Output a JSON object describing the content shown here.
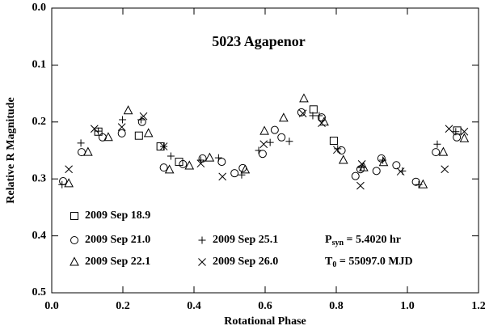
{
  "chart_data": {
    "type": "scatter",
    "title": "5023 Agapenor",
    "x_label": "Rotational Phase",
    "y_label": "Relative R Magnitude",
    "xlim": [
      0,
      1.2
    ],
    "ylim": [
      0,
      0.5
    ],
    "y_inverted": true,
    "xticks": [
      {
        "value": 0,
        "label": "0.0"
      },
      {
        "value": 0.2,
        "label": "0.2"
      },
      {
        "value": 0.4,
        "label": "0.4"
      },
      {
        "value": 0.6,
        "label": "0.6"
      },
      {
        "value": 0.8,
        "label": "0.8"
      },
      {
        "value": 1.0,
        "label": "1.0"
      },
      {
        "value": 1.2,
        "label": "1.2"
      }
    ],
    "yticks": [
      {
        "value": 0,
        "label": "0.0"
      },
      {
        "value": 0.1,
        "label": "0.1"
      },
      {
        "value": 0.2,
        "label": "0.2"
      },
      {
        "value": 0.3,
        "label": "0.3"
      },
      {
        "value": 0.4,
        "label": "0.4"
      },
      {
        "value": 0.5,
        "label": "0.5"
      }
    ],
    "series": [
      {
        "name": "2009 Sep 18.9",
        "color": "#000000",
        "marker": "square",
        "x": [
          0.131,
          0.245,
          0.306,
          0.358,
          0.736,
          0.793,
          1.14
        ],
        "values": [
          0.217,
          0.224,
          0.243,
          0.27,
          0.178,
          0.233,
          0.215
        ]
      },
      {
        "name": "2009 Sep 21.0",
        "color": "#000000",
        "marker": "circle",
        "x": [
          0.032,
          0.084,
          0.143,
          0.197,
          0.254,
          0.315,
          0.369,
          0.424,
          0.478,
          0.514,
          0.537,
          0.593,
          0.627,
          0.646,
          0.702,
          0.759,
          0.815,
          0.854,
          0.868,
          0.913,
          0.927,
          0.969,
          1.024,
          1.08,
          1.139
        ],
        "values": [
          0.304,
          0.253,
          0.227,
          0.22,
          0.2,
          0.28,
          0.274,
          0.264,
          0.27,
          0.29,
          0.281,
          0.256,
          0.214,
          0.227,
          0.183,
          0.192,
          0.25,
          0.295,
          0.283,
          0.286,
          0.264,
          0.276,
          0.305,
          0.253,
          0.227
        ]
      },
      {
        "name": "2009 Sep 22.1",
        "color": "#000000",
        "marker": "triangle",
        "x": [
          0.048,
          0.102,
          0.159,
          0.215,
          0.272,
          0.331,
          0.387,
          0.444,
          0.544,
          0.598,
          0.652,
          0.709,
          0.766,
          0.82,
          0.877,
          0.933,
          1.044,
          1.101,
          1.16
        ],
        "values": [
          0.308,
          0.253,
          0.227,
          0.18,
          0.22,
          0.284,
          0.277,
          0.263,
          0.284,
          0.216,
          0.193,
          0.159,
          0.2,
          0.267,
          0.28,
          0.271,
          0.31,
          0.253,
          0.229
        ]
      },
      {
        "name": "2009 Sep 25.1",
        "color": "#000000",
        "marker": "plus",
        "x": [
          0.029,
          0.082,
          0.131,
          0.199,
          0.251,
          0.315,
          0.335,
          0.419,
          0.469,
          0.534,
          0.582,
          0.614,
          0.668,
          0.734,
          0.752,
          0.804,
          0.87,
          0.931,
          0.986,
          1.032,
          1.084,
          1.136
        ],
        "values": [
          0.31,
          0.237,
          0.216,
          0.196,
          0.196,
          0.243,
          0.26,
          0.267,
          0.263,
          0.293,
          0.25,
          0.236,
          0.234,
          0.189,
          0.189,
          0.247,
          0.28,
          0.267,
          0.286,
          0.31,
          0.239,
          0.217
        ]
      },
      {
        "name": "2009 Sep 26.0",
        "color": "#000000",
        "marker": "x",
        "x": [
          0.048,
          0.12,
          0.197,
          0.258,
          0.315,
          0.419,
          0.48,
          0.596,
          0.706,
          0.759,
          0.802,
          0.868,
          0.872,
          0.981,
          1.105,
          1.117,
          1.16
        ],
        "values": [
          0.283,
          0.212,
          0.209,
          0.19,
          0.243,
          0.273,
          0.296,
          0.239,
          0.185,
          0.202,
          0.249,
          0.312,
          0.274,
          0.287,
          0.283,
          0.212,
          0.217
        ]
      }
    ],
    "annotations": [
      {
        "symbol": "P",
        "subscript": "syn",
        "text": " = 5.4020 hr"
      },
      {
        "symbol": "T",
        "subscript": "0",
        "text": " = 55097.0 MJD"
      }
    ]
  }
}
